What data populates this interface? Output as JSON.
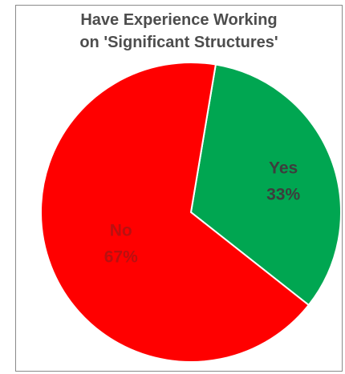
{
  "chart_data": {
    "type": "pie",
    "title": [
      "Have Experience Working",
      "on 'Significant Structures'"
    ],
    "slices": [
      {
        "label": "Yes",
        "value": 33,
        "display": "33%",
        "color": "#00a651",
        "label_color": "#3d3d3d"
      },
      {
        "label": "No",
        "value": 67,
        "display": "67%",
        "color": "#ff0000",
        "label_color": "#b91010"
      }
    ],
    "legend": "none"
  }
}
